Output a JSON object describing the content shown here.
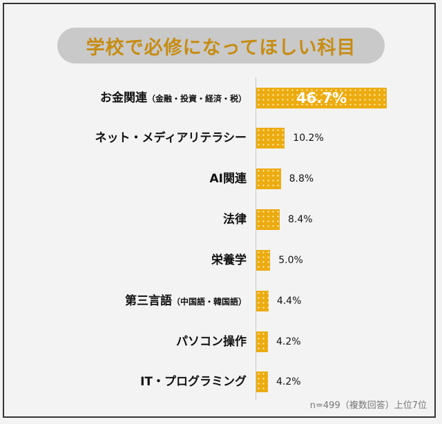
{
  "chart_data": {
    "type": "bar",
    "orientation": "horizontal",
    "title": "学校で必修になってほしい科目",
    "categories": [
      {
        "main": "お金関連",
        "sub": "（金融・投資・経済・税）"
      },
      {
        "main": "ネット・メディアリテラシー",
        "sub": ""
      },
      {
        "main": "AI関連",
        "sub": ""
      },
      {
        "main": "法律",
        "sub": ""
      },
      {
        "main": "栄養学",
        "sub": ""
      },
      {
        "main": "第三言語",
        "sub": "（中国語・韓国語）"
      },
      {
        "main": "パソコン操作",
        "sub": ""
      },
      {
        "main": "IT・プログラミング",
        "sub": ""
      }
    ],
    "values": [
      46.7,
      10.2,
      8.8,
      8.4,
      5.0,
      4.4,
      4.2,
      4.2
    ],
    "value_labels": [
      "46.7%",
      "10.2%",
      "8.8%",
      "8.4%",
      "5.0%",
      "4.4%",
      "4.2%",
      "4.2%"
    ],
    "unit": "%",
    "xlim": [
      0,
      50
    ],
    "bar_color": "#ecab0f",
    "note": "n=499（複数回答）上位7位"
  }
}
